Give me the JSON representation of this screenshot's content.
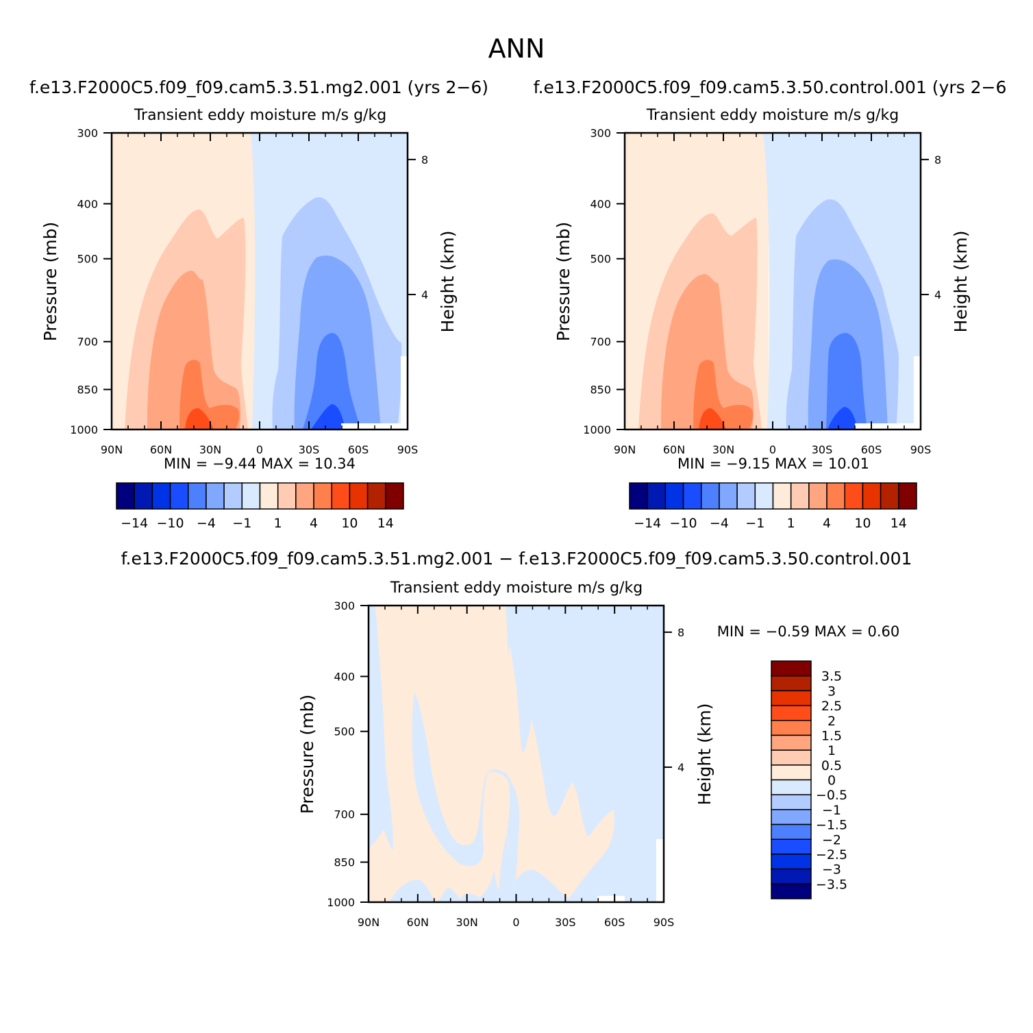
{
  "figure": {
    "title": "ANN",
    "palette": [
      "#00007f",
      "#0019b3",
      "#0033e6",
      "#1a4dff",
      "#4d80ff",
      "#80a8ff",
      "#b3ccff",
      "#d9eaff",
      "#ffebd9",
      "#ffccb3",
      "#ffa680",
      "#ff804d",
      "#ff4d1a",
      "#e63300",
      "#b32200",
      "#800000"
    ]
  },
  "chart_data": [
    {
      "id": "test",
      "type": "contour",
      "title": "f.e13.F2000C5.f09_f09.cam5.3.51.mg2.001  (yrs  2−6)",
      "subtitle": "Transient  eddy  moisture m/s  g/kg",
      "ylabel": "Pressure  (mb)",
      "ylabel_right": "Height  (km)",
      "x_ticks": [
        "90N",
        "60N",
        "30N",
        "0",
        "30S",
        "60S",
        "90S"
      ],
      "y_ticks": [
        "300",
        "400",
        "500",
        "700",
        "850",
        "1000"
      ],
      "height_ticks": [
        "8",
        "4"
      ],
      "min_text": "MIN  =    −9.44    MAX  =    10.34",
      "min": -9.44,
      "max": 10.34,
      "colorbar_labels": [
        "−14",
        "−10",
        "−4",
        "−1",
        "1",
        "4",
        "10",
        "14"
      ]
    },
    {
      "id": "control",
      "type": "contour",
      "title": "f.e13.F2000C5.f09_f09.cam5.3.50.control.001  (yrs  2−6",
      "subtitle": "Transient  eddy  moisture m/s  g/kg",
      "ylabel": "Pressure  (mb)",
      "ylabel_right": "Height  (km)",
      "x_ticks": [
        "90N",
        "60N",
        "30N",
        "0",
        "30S",
        "60S",
        "90S"
      ],
      "y_ticks": [
        "300",
        "400",
        "500",
        "700",
        "850",
        "1000"
      ],
      "height_ticks": [
        "8",
        "4"
      ],
      "min_text": "MIN  =    −9.15    MAX  =    10.01",
      "min": -9.15,
      "max": 10.01,
      "colorbar_labels": [
        "−14",
        "−10",
        "−4",
        "−1",
        "1",
        "4",
        "10",
        "14"
      ]
    },
    {
      "id": "diff",
      "type": "contour",
      "title": "f.e13.F2000C5.f09_f09.cam5.3.51.mg2.001  −  f.e13.F2000C5.f09_f09.cam5.3.50.control.001",
      "subtitle": "Transient  eddy  moisture m/s  g/kg",
      "ylabel": "Pressure  (mb)",
      "ylabel_right": "Height  (km)",
      "x_ticks": [
        "90N",
        "60N",
        "30N",
        "0",
        "30S",
        "60S",
        "90S"
      ],
      "y_ticks": [
        "300",
        "400",
        "500",
        "700",
        "850",
        "1000"
      ],
      "height_ticks": [
        "8",
        "4"
      ],
      "min_text": "MIN  =    −0.59    MAX  =     0.60",
      "min": -0.59,
      "max": 0.6,
      "colorbar_labels": [
        "3.5",
        "3",
        "2.5",
        "2",
        "1.5",
        "1",
        "0.5",
        "0",
        "−0.5",
        "−1",
        "−1.5",
        "−2",
        "−2.5",
        "−3",
        "−3.5"
      ]
    }
  ]
}
